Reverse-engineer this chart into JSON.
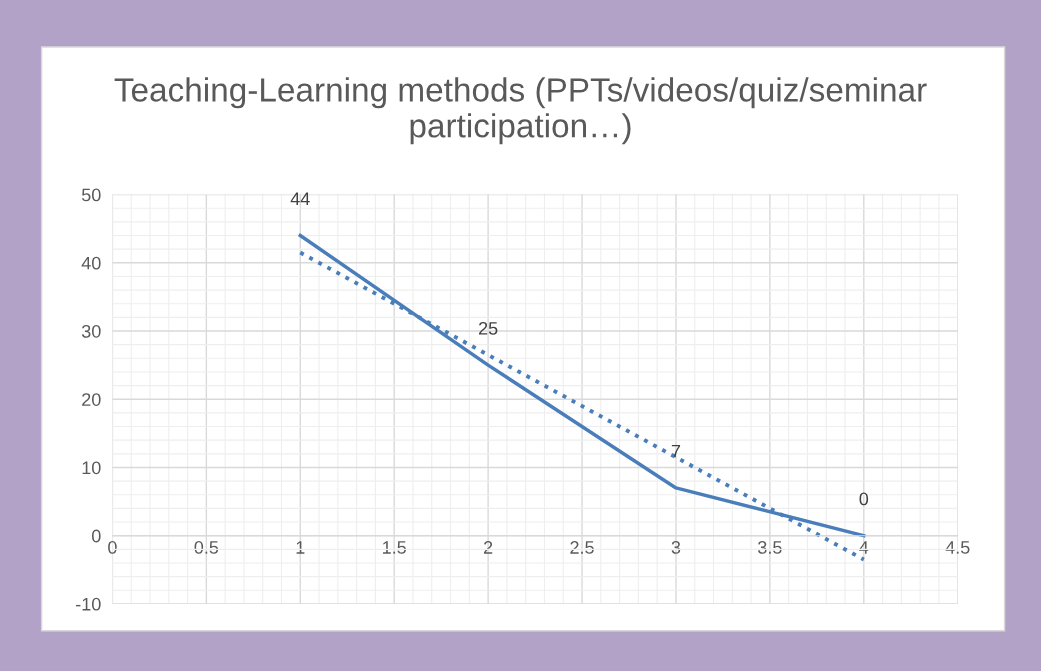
{
  "chart_data": {
    "type": "line",
    "title": "Teaching-Learning methods (PPTs/videos/quiz/seminar participation…)",
    "x": [
      1,
      2,
      3,
      4
    ],
    "series": [
      {
        "color": "#4a7ebb",
        "values": [
          44,
          25,
          7,
          0
        ],
        "value_labels": [
          "44",
          "25",
          "7",
          "0"
        ],
        "line_style": "solid"
      },
      {
        "type": "line",
        "x": [
          1,
          4
        ],
        "color": "#4a7ebb",
        "values": [
          41.5,
          -3.5
        ],
        "line_style": "dotted"
      }
    ],
    "xlim": [
      0,
      4.5
    ],
    "xticks": [
      0,
      0.5,
      1,
      1.5,
      2,
      2.5,
      3,
      3.5,
      4,
      4.5
    ],
    "ylim": [
      -10,
      50
    ],
    "yticks": [
      -10,
      0,
      10,
      20,
      30,
      40,
      50
    ],
    "grid": true,
    "legend": false,
    "marker": "none"
  }
}
